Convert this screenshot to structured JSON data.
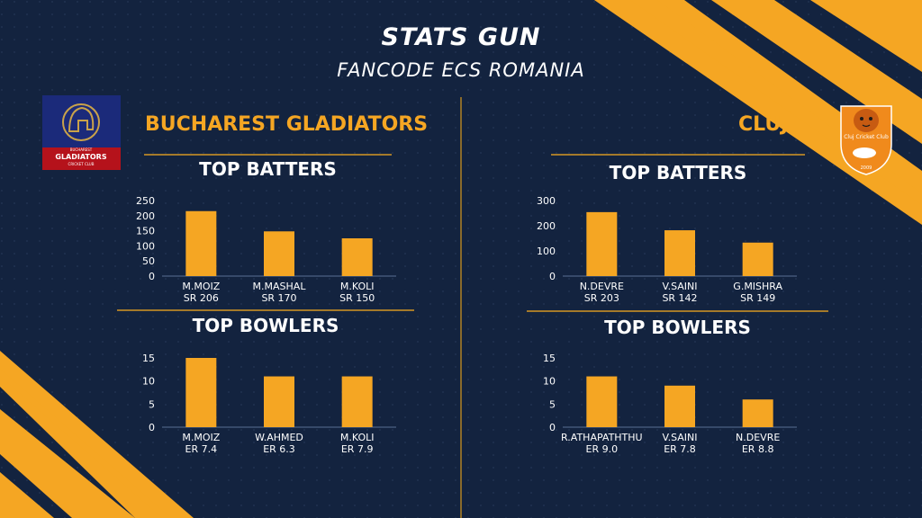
{
  "header": {
    "title": "STATS GUN",
    "subtitle": "FANCODE ECS ROMANIA"
  },
  "colors": {
    "background": "#13233f",
    "accent": "#f5a623",
    "text": "#ffffff"
  },
  "teams": [
    {
      "name": "BUCHAREST GLADIATORS",
      "logo": {
        "icon": "gladiator-helmet-icon",
        "text_main": "GLADIATORS",
        "text_top": "BUCHAREST",
        "text_bottom": "CRICKET CLUB"
      },
      "batting_title": "TOP BATTERS",
      "bowling_title": "TOP BOWLERS"
    },
    {
      "name": "CLUJ",
      "logo": {
        "icon": "tiger-shield-icon",
        "text_main": "Cluj Cricket Club",
        "text_year": "2009"
      },
      "batting_title": "TOP BATTERS",
      "bowling_title": "TOP BOWLERS"
    }
  ],
  "chart_data": [
    {
      "type": "bar",
      "team": "BUCHAREST GLADIATORS",
      "section": "TOP BATTERS",
      "categories": [
        "M.MOIZ",
        "M.MASHAL",
        "M.KOLI"
      ],
      "sublabels": [
        "SR 206",
        "SR 170",
        "SR 150"
      ],
      "values": [
        215,
        148,
        125
      ],
      "yticks": [
        0,
        50,
        100,
        150,
        200,
        250
      ],
      "ylim": [
        0,
        250
      ],
      "color": "#f5a623"
    },
    {
      "type": "bar",
      "team": "BUCHAREST GLADIATORS",
      "section": "TOP BOWLERS",
      "categories": [
        "M.MOIZ",
        "W.AHMED",
        "M.KOLI"
      ],
      "sublabels": [
        "ER 7.4",
        "ER 6.3",
        "ER 7.9"
      ],
      "values": [
        15,
        11,
        11
      ],
      "yticks": [
        0,
        5,
        10,
        15
      ],
      "ylim": [
        0,
        15
      ],
      "color": "#f5a623"
    },
    {
      "type": "bar",
      "team": "CLUJ",
      "section": "TOP BATTERS",
      "categories": [
        "N.DEVRE",
        "V.SAINI",
        "G.MISHRA"
      ],
      "sublabels": [
        "SR 203",
        "SR 142",
        "SR 149"
      ],
      "values": [
        254,
        182,
        133
      ],
      "yticks": [
        0,
        100,
        200,
        300
      ],
      "ylim": [
        0,
        300
      ],
      "color": "#f5a623"
    },
    {
      "type": "bar",
      "team": "CLUJ",
      "section": "TOP BOWLERS",
      "categories": [
        "R.ATHAPATHTHU",
        "V.SAINI",
        "N.DEVRE"
      ],
      "sublabels": [
        "ER 9.0",
        "ER 7.8",
        "ER 8.8"
      ],
      "values": [
        11,
        9,
        6
      ],
      "yticks": [
        0,
        5,
        10,
        15
      ],
      "ylim": [
        0,
        15
      ],
      "color": "#f5a623"
    }
  ]
}
